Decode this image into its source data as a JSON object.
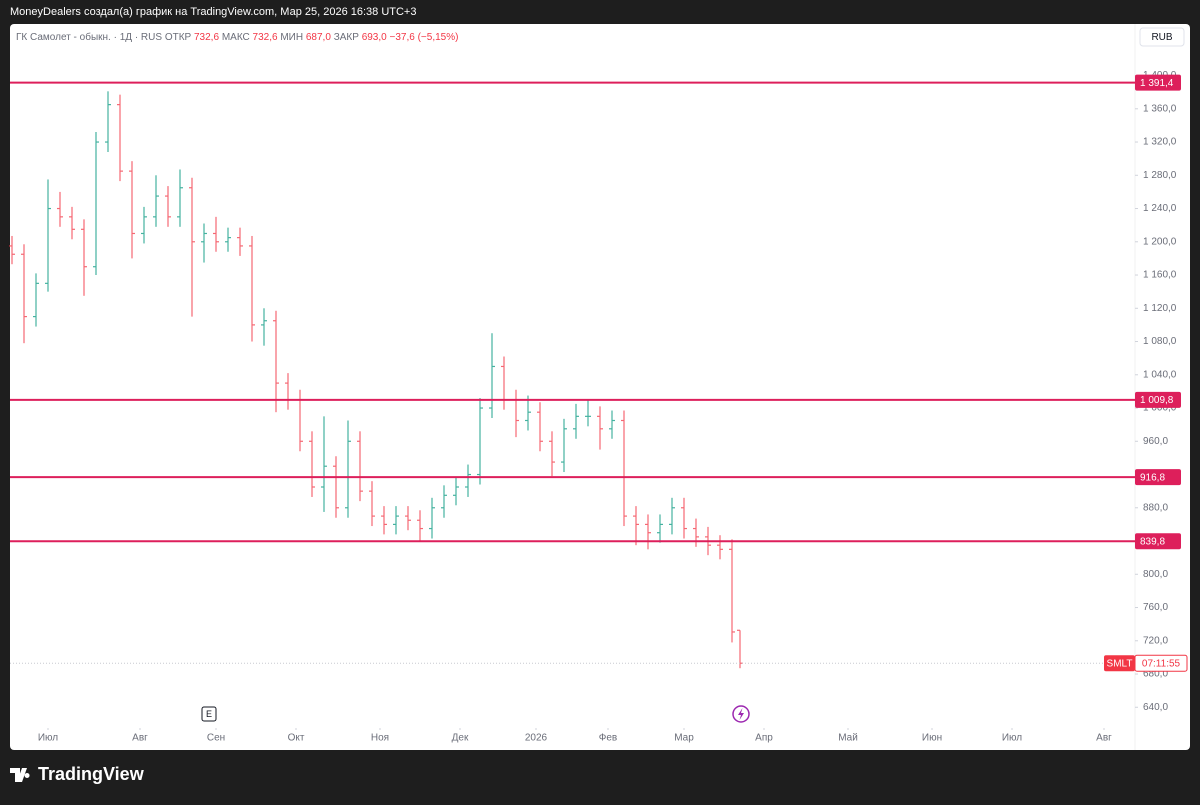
{
  "header": "MoneyDealers создал(а) график на TradingView.com, Мар 25, 2026 16:38 UTC+3",
  "footer_logo": "TradingView",
  "chart_data": {
    "type": "ohlc",
    "legend": {
      "symbol": "ГК Самолет - обыкн. · 1Д · RUS",
      "items": [
        {
          "name": "ОТКР",
          "value": {
            "value": 732.6,
            "label": "732,6"
          }
        },
        {
          "name": "МАКС",
          "value": {
            "value": 732.6,
            "label": "732,6"
          }
        },
        {
          "name": "МИН",
          "value": {
            "value": 687,
            "label": "687,0"
          }
        },
        {
          "name": "ЗАКР",
          "value": {
            "value": 693,
            "label": "693,0"
          }
        }
      ],
      "change": {
        "value": -37.6,
        "label": "−37,6"
      },
      "change_pct": {
        "value": -5.15,
        "label": "(−5,15%)"
      }
    },
    "currency": "RUB",
    "up_color": "#089981",
    "down_color": "#f23645",
    "x": [
      -9,
      -6,
      -3,
      0,
      3,
      6,
      9,
      12,
      15,
      18,
      21,
      24,
      27,
      30,
      33,
      36,
      39,
      42,
      45,
      48,
      51,
      54,
      57,
      60,
      63,
      66,
      69,
      72,
      75,
      78,
      81,
      84,
      87,
      90,
      93,
      96,
      99,
      102,
      105,
      108,
      111,
      114,
      117,
      120,
      123,
      126,
      129,
      132,
      135,
      138,
      141,
      144,
      147,
      150,
      153,
      156,
      159,
      162,
      165,
      168,
      171,
      173
    ],
    "open": [
      1195,
      1185,
      1110,
      1150,
      1240,
      1230,
      1215,
      1170,
      1320,
      1365,
      1285,
      1210,
      1230,
      1255,
      1230,
      1265,
      1200,
      1210,
      1200,
      1205,
      1195,
      1100,
      1105,
      1030,
      1010,
      960,
      905,
      930,
      880,
      960,
      900,
      870,
      860,
      870,
      865,
      855,
      880,
      895,
      905,
      920,
      1000,
      1050,
      1010,
      985,
      995,
      960,
      935,
      975,
      990,
      990,
      975,
      985,
      870,
      860,
      850,
      860,
      880,
      855,
      845,
      835,
      830,
      732.6
    ],
    "high": [
      1207,
      1197,
      1162,
      1275,
      1260,
      1242,
      1227,
      1332,
      1381,
      1377,
      1297,
      1242,
      1280,
      1267,
      1287,
      1277,
      1222,
      1230,
      1217,
      1217,
      1207,
      1120,
      1117,
      1042,
      1022,
      972,
      990,
      942,
      985,
      972,
      912,
      882,
      882,
      882,
      877,
      892,
      907,
      917,
      932,
      1012,
      1090,
      1062,
      1022,
      1015,
      1007,
      972,
      987,
      1005,
      1010,
      1002,
      997,
      997,
      882,
      872,
      872,
      892,
      892,
      867,
      857,
      847,
      842,
      732.6
    ],
    "low": [
      1173,
      1078,
      1098,
      1140,
      1218,
      1203,
      1135,
      1160,
      1308,
      1273,
      1180,
      1198,
      1218,
      1218,
      1218,
      1110,
      1175,
      1188,
      1188,
      1183,
      1080,
      1075,
      995,
      998,
      948,
      893,
      875,
      868,
      868,
      888,
      858,
      848,
      848,
      853,
      840,
      843,
      868,
      883,
      893,
      908,
      988,
      998,
      965,
      973,
      948,
      918,
      923,
      963,
      978,
      950,
      963,
      858,
      835,
      830,
      838,
      848,
      843,
      833,
      823,
      818,
      718,
      687
    ],
    "close": [
      1185,
      1110,
      1150,
      1240,
      1230,
      1215,
      1170,
      1320,
      1365,
      1285,
      1210,
      1230,
      1255,
      1230,
      1265,
      1200,
      1210,
      1200,
      1205,
      1195,
      1100,
      1105,
      1030,
      1010,
      960,
      905,
      930,
      880,
      960,
      900,
      870,
      860,
      870,
      865,
      855,
      880,
      895,
      905,
      920,
      1000,
      1050,
      1010,
      985,
      995,
      960,
      935,
      975,
      990,
      990,
      975,
      985,
      870,
      860,
      850,
      860,
      880,
      855,
      845,
      835,
      830,
      730.6,
      693
    ],
    "xlim": [
      -9.5,
      271.75
    ],
    "ylim": [
      591,
      1462
    ],
    "xticks": [
      {
        "value": 0,
        "label": "Июл"
      },
      {
        "value": 23,
        "label": "Авг"
      },
      {
        "value": 42,
        "label": "Сен"
      },
      {
        "value": 62,
        "label": "Окт"
      },
      {
        "value": 83,
        "label": "Ноя"
      },
      {
        "value": 103,
        "label": "Дек"
      },
      {
        "value": 122,
        "label": "2026"
      },
      {
        "value": 140,
        "label": "Фев"
      },
      {
        "value": 159,
        "label": "Мар"
      },
      {
        "value": 179,
        "label": "Апр"
      },
      {
        "value": 200,
        "label": "Май"
      },
      {
        "value": 221,
        "label": "Июн"
      },
      {
        "value": 241,
        "label": "Июл"
      },
      {
        "value": 264,
        "label": "Авг"
      }
    ],
    "yticks": [
      {
        "value": 640,
        "label": "640,0"
      },
      {
        "value": 680,
        "label": "680,0"
      },
      {
        "value": 720,
        "label": "720,0"
      },
      {
        "value": 760,
        "label": "760,0"
      },
      {
        "value": 800,
        "label": "800,0"
      },
      {
        "value": 840,
        "label": "840,0"
      },
      {
        "value": 880,
        "label": "880,0"
      },
      {
        "value": 920,
        "label": "920,0"
      },
      {
        "value": 960,
        "label": "960,0"
      },
      {
        "value": 1000,
        "label": "1 000,0"
      },
      {
        "value": 1040,
        "label": "1 040,0"
      },
      {
        "value": 1080,
        "label": "1 080,0"
      },
      {
        "value": 1120,
        "label": "1 120,0"
      },
      {
        "value": 1160,
        "label": "1 160,0"
      },
      {
        "value": 1200,
        "label": "1 200,0"
      },
      {
        "value": 1240,
        "label": "1 240,0"
      },
      {
        "value": 1280,
        "label": "1 280,0"
      },
      {
        "value": 1320,
        "label": "1 320,0"
      },
      {
        "value": 1360,
        "label": "1 360,0"
      },
      {
        "value": 1400,
        "label": "1 400,0"
      }
    ],
    "grid": false,
    "level_color": "#dd1f5b",
    "levels": [
      {
        "value": 1391.4,
        "label": "1 391,4"
      },
      {
        "value": 1009.8,
        "label": "1 009,8"
      },
      {
        "value": 916.8,
        "label": "916,8"
      },
      {
        "value": 839.8,
        "label": "839,8"
      }
    ],
    "last_price": {
      "value": 693,
      "symbol": "SMLT",
      "countdown": "07:11:55"
    },
    "events": [
      "E"
    ]
  }
}
